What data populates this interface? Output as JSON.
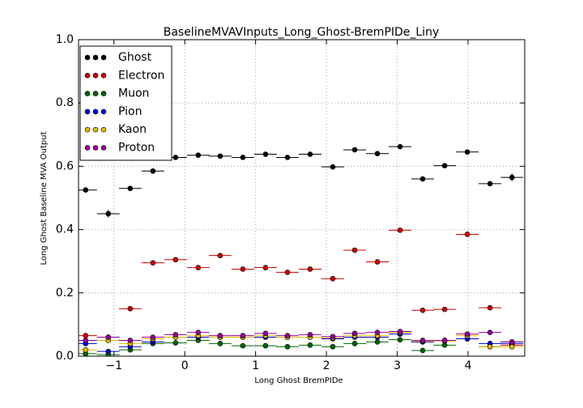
{
  "chart_data": {
    "type": "scatter",
    "title": "BaselineMVAVInputs_Long_Ghost-BremPIDe_Liny",
    "x_label": "Long Ghost BremPIDe",
    "y_label": "Long Ghost Baseline MVA Output",
    "x": [
      -1.4,
      -1.08,
      -0.77,
      -0.45,
      -0.13,
      0.19,
      0.5,
      0.82,
      1.14,
      1.45,
      1.77,
      2.09,
      2.4,
      2.72,
      3.04,
      3.36,
      3.67,
      3.99,
      4.31,
      4.62
    ],
    "xerr": 0.16,
    "series": [
      {
        "name": "Ghost",
        "color": "#000000",
        "values": [
          0.525,
          0.45,
          0.53,
          0.585,
          0.628,
          0.635,
          0.632,
          0.628,
          0.638,
          0.628,
          0.638,
          0.598,
          0.652,
          0.64,
          0.662,
          0.56,
          0.602,
          0.645,
          0.545,
          0.565
        ],
        "errors": [
          0.006,
          0.012,
          0.005,
          0.005,
          0.004,
          0.004,
          0.004,
          0.004,
          0.004,
          0.004,
          0.004,
          0.005,
          0.005,
          0.005,
          0.005,
          0.006,
          0.006,
          0.006,
          0.006,
          0.012
        ]
      },
      {
        "name": "Electron",
        "color": "#cc0000",
        "values": [
          0.065,
          0.06,
          0.15,
          0.295,
          0.305,
          0.28,
          0.318,
          0.275,
          0.28,
          0.265,
          0.275,
          0.245,
          0.335,
          0.298,
          0.398,
          0.145,
          0.148,
          0.385,
          0.153,
          0.035
        ]
      },
      {
        "name": "Muon",
        "color": "#006600",
        "values": [
          0.008,
          0.005,
          0.02,
          0.04,
          0.042,
          0.05,
          0.04,
          0.033,
          0.033,
          0.03,
          0.035,
          0.03,
          0.04,
          0.045,
          0.052,
          0.018,
          0.035,
          0.055,
          0.03,
          0.045
        ]
      },
      {
        "name": "Pion",
        "color": "#0000cc",
        "values": [
          0.04,
          0.015,
          0.03,
          0.045,
          0.06,
          0.06,
          0.06,
          0.06,
          0.06,
          0.06,
          0.06,
          0.055,
          0.06,
          0.06,
          0.07,
          0.045,
          0.05,
          0.055,
          0.04,
          0.04
        ]
      },
      {
        "name": "Kaon",
        "color": "#e6b800",
        "values": [
          0.02,
          0.05,
          0.04,
          0.055,
          0.06,
          0.065,
          0.06,
          0.06,
          0.065,
          0.06,
          0.06,
          0.058,
          0.065,
          0.065,
          0.075,
          0.048,
          0.048,
          0.065,
          0.03,
          0.03
        ]
      },
      {
        "name": "Proton",
        "color": "#990099",
        "values": [
          0.05,
          0.06,
          0.05,
          0.06,
          0.068,
          0.075,
          0.065,
          0.065,
          0.072,
          0.065,
          0.068,
          0.062,
          0.072,
          0.075,
          0.078,
          0.05,
          0.05,
          0.07,
          0.075,
          0.045
        ]
      }
    ],
    "xlim": [
      -1.5,
      4.8
    ],
    "ylim": [
      0,
      1
    ],
    "xticks": [
      {
        "value": -1,
        "label": "−1"
      },
      0,
      1,
      2,
      3,
      4
    ],
    "yticks": [
      {
        "value": 0,
        "label": "0.0"
      },
      {
        "value": 0.2,
        "label": "0.2"
      },
      {
        "value": 0.4,
        "label": "0.4"
      },
      {
        "value": 0.6,
        "label": "0.6"
      },
      {
        "value": 0.8,
        "label": "0.8"
      },
      {
        "value": 1,
        "label": "1.0"
      }
    ],
    "grid": true,
    "legend": "upper left"
  }
}
